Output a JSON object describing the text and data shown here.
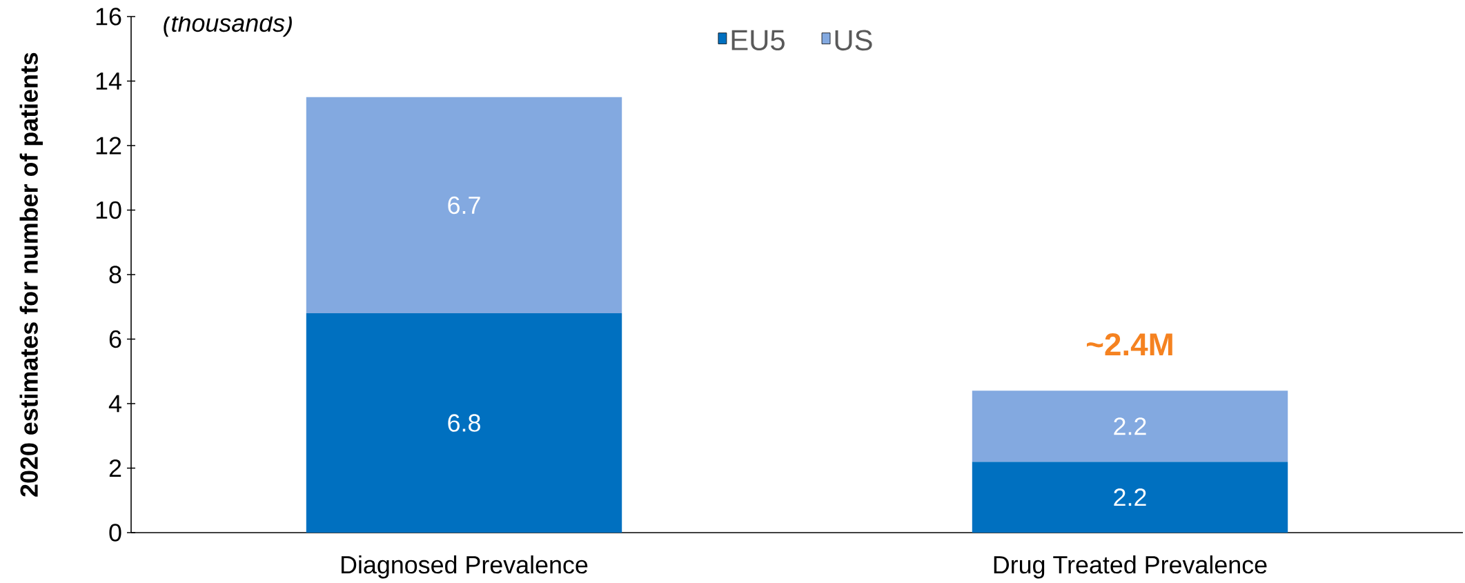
{
  "chart_data": {
    "type": "bar",
    "stacked": true,
    "ylabel": "2020 estimates for number of patients",
    "categories": [
      "Diagnosed Prevalence",
      "Drug Treated Prevalence"
    ],
    "series": [
      {
        "name": "EU5",
        "color": "#0070c0",
        "values": [
          6.8,
          2.2
        ]
      },
      {
        "name": "US",
        "color": "#83a9e0",
        "values": [
          6.7,
          2.2
        ]
      }
    ],
    "ylim": [
      0,
      16
    ],
    "yticks": [
      0,
      2,
      4,
      6,
      8,
      10,
      12,
      14,
      16
    ],
    "grid": false,
    "legend": "top",
    "data_labels": true,
    "annotations": [
      "(thousands)",
      "~2.4M"
    ]
  }
}
